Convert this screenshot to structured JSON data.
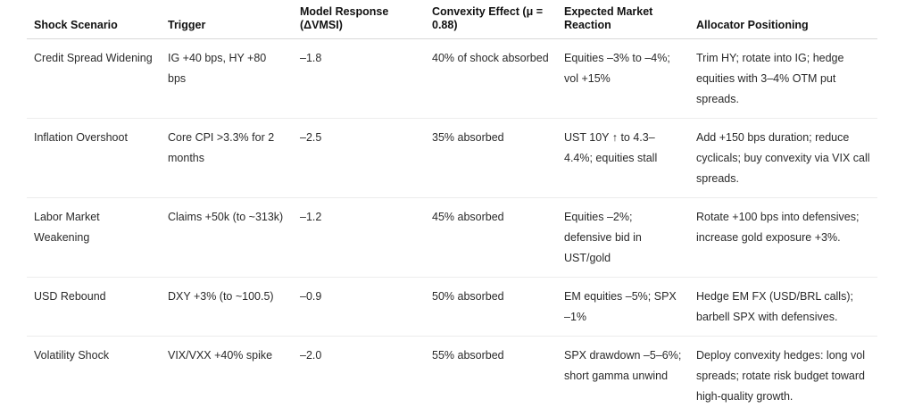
{
  "table": {
    "headers": [
      "Shock Scenario",
      "Trigger",
      "Model Response (ΔVMSI)",
      "Convexity Effect (μ = 0.88)",
      "Expected Market Reaction",
      "Allocator Positioning"
    ],
    "rows": [
      [
        "Credit Spread Widening",
        "IG +40 bps, HY +80 bps",
        "–1.8",
        "40% of shock absorbed",
        "Equities –3% to –4%; vol +15%",
        "Trim HY; rotate into IG; hedge equities with 3–4% OTM put spreads."
      ],
      [
        "Inflation Overshoot",
        "Core CPI >3.3% for 2 months",
        "–2.5",
        "35% absorbed",
        "UST 10Y ↑ to 4.3–4.4%; equities stall",
        "Add +150 bps duration; reduce cyclicals; buy convexity via VIX call spreads."
      ],
      [
        "Labor Market Weakening",
        "Claims +50k (to ~313k)",
        "–1.2",
        "45% absorbed",
        "Equities –2%; defensive bid in UST/gold",
        "Rotate +100 bps into defensives; increase gold exposure +3%."
      ],
      [
        "USD Rebound",
        "DXY +3% (to ~100.5)",
        "–0.9",
        "50% absorbed",
        "EM equities –5%; SPX –1%",
        "Hedge EM FX (USD/BRL calls); barbell SPX with defensives."
      ],
      [
        "Volatility Shock",
        "VIX/VXX +40% spike",
        "–2.0",
        "55% absorbed",
        "SPX drawdown –5–6%; short gamma unwind",
        "Deploy convexity hedges: long vol spreads; rotate risk budget toward high-quality growth."
      ]
    ]
  }
}
